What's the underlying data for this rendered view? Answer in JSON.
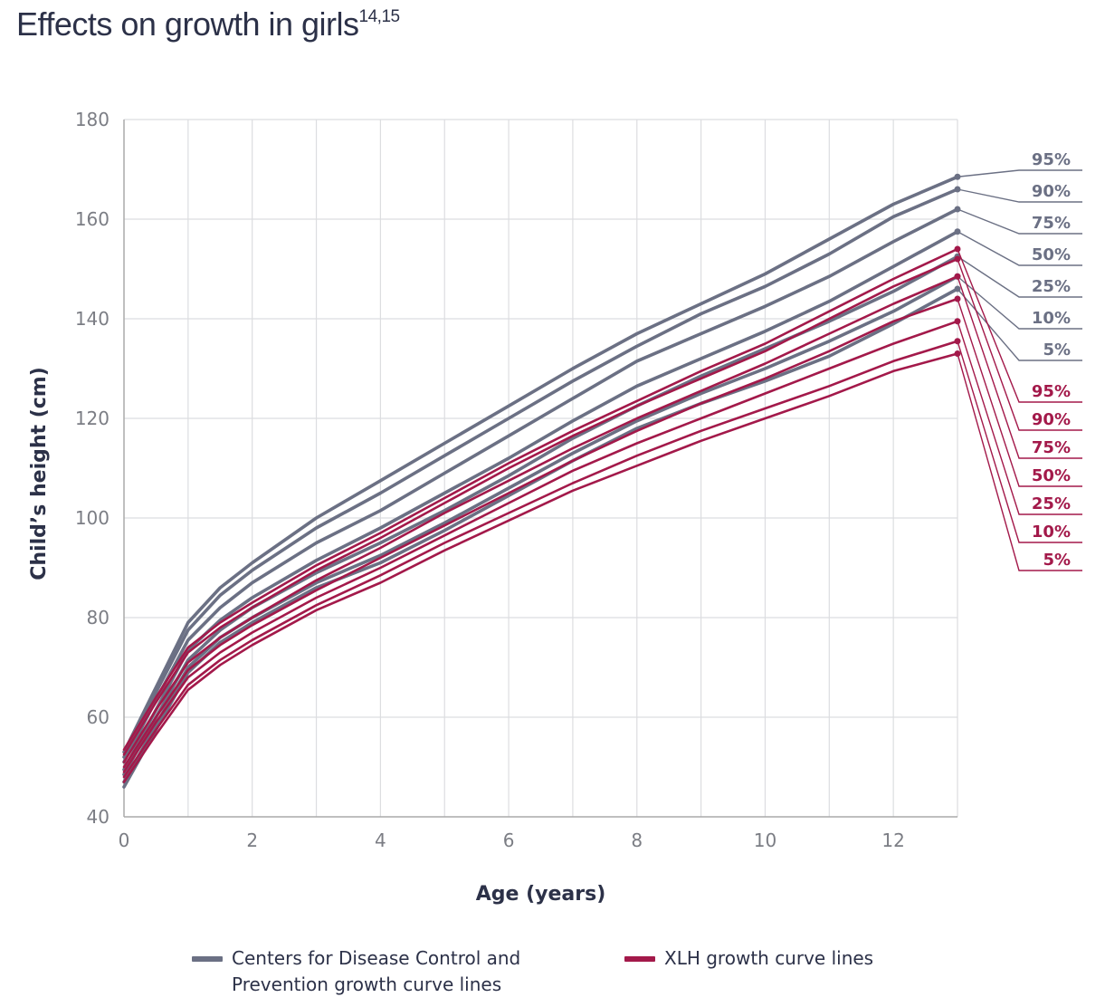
{
  "title": {
    "text": "Effects on growth in girls",
    "superscript": "14,15"
  },
  "colors": {
    "cdc": "#6b7084",
    "xlh": "#a3194a",
    "grid": "#dcdde0",
    "axis": "#aaaaaa"
  },
  "legend": {
    "cdc_label_line1": "Centers for Disease Control and",
    "cdc_label_line2": "Prevention growth curve lines",
    "xlh_label": "XLH growth curve lines"
  },
  "chart_data": {
    "type": "line",
    "xlabel": "Age (years)",
    "ylabel": "Child’s height (cm)",
    "xlim": [
      0,
      13
    ],
    "ylim": [
      40,
      180
    ],
    "xticks": [
      0,
      2,
      4,
      6,
      8,
      10,
      12
    ],
    "yticks": [
      40,
      60,
      80,
      100,
      120,
      140,
      160,
      180
    ],
    "grid": true,
    "x": [
      0,
      0.5,
      1,
      1.5,
      2,
      3,
      4,
      5,
      6,
      7,
      8,
      9,
      10,
      11,
      12,
      13
    ],
    "series": [
      {
        "group": "cdc",
        "name": "95%",
        "values": [
          53,
          66,
          79,
          86,
          91,
          100,
          107.5,
          115,
          122.5,
          130,
          137,
          143,
          149,
          156,
          163,
          168.5
        ]
      },
      {
        "group": "cdc",
        "name": "90%",
        "values": [
          52,
          65,
          77.5,
          84.5,
          89.5,
          98,
          105,
          112.5,
          120,
          127.5,
          134.5,
          141,
          146.5,
          153,
          160.5,
          166
        ]
      },
      {
        "group": "cdc",
        "name": "75%",
        "values": [
          51,
          63.5,
          75.5,
          82,
          87,
          95,
          101.5,
          109,
          116.5,
          124,
          131.5,
          137,
          142.5,
          148.5,
          155.5,
          162
        ]
      },
      {
        "group": "cdc",
        "name": "50%",
        "values": [
          49.5,
          61.5,
          73.5,
          79.5,
          84,
          91.5,
          98,
          105,
          112,
          119.5,
          126.5,
          132,
          137.5,
          143.5,
          150.5,
          157.5
        ]
      },
      {
        "group": "cdc",
        "name": "25%",
        "values": [
          48.5,
          60,
          71.5,
          77.5,
          82,
          89,
          95,
          101.5,
          108.5,
          116,
          122.5,
          128.5,
          134,
          139.5,
          145.5,
          152.5
        ]
      },
      {
        "group": "cdc",
        "name": "10%",
        "values": [
          47,
          58.5,
          70,
          76,
          80,
          87,
          92.5,
          99,
          106,
          113,
          119.5,
          125,
          130,
          135.5,
          141.5,
          148.5
        ]
      },
      {
        "group": "cdc",
        "name": "5%",
        "values": [
          46,
          57.5,
          69,
          75,
          79,
          86,
          91,
          97.5,
          104.5,
          111.5,
          118,
          123,
          127.5,
          132.5,
          139,
          146
        ]
      },
      {
        "group": "xlh",
        "name": "95%",
        "values": [
          53.5,
          64,
          74,
          79,
          83,
          90.5,
          97,
          104,
          111,
          117.5,
          123.5,
          129.5,
          135,
          141.5,
          148,
          154
        ]
      },
      {
        "group": "xlh",
        "name": "90%",
        "values": [
          52.5,
          63,
          73,
          78,
          82,
          89.5,
          96,
          103,
          110,
          116.5,
          122.5,
          128,
          133.5,
          140,
          146.5,
          152
        ]
      },
      {
        "group": "xlh",
        "name": "75%",
        "values": [
          51,
          61.5,
          71,
          76,
          80,
          87.5,
          94,
          101,
          107.5,
          114,
          120,
          125.5,
          131,
          137,
          143,
          148.5
        ]
      },
      {
        "group": "xlh",
        "name": "50%",
        "values": [
          50,
          60,
          69.5,
          74.5,
          78.5,
          85.5,
          92,
          98.5,
          105,
          111.5,
          117.5,
          123,
          128,
          133.5,
          139.5,
          144
        ]
      },
      {
        "group": "xlh",
        "name": "25%",
        "values": [
          49,
          59,
          68,
          73,
          77,
          84,
          90,
          96.5,
          103,
          109.5,
          115,
          120,
          125,
          130,
          135,
          139.5
        ]
      },
      {
        "group": "xlh",
        "name": "10%",
        "values": [
          48,
          57.5,
          66.5,
          71.5,
          75.5,
          82.5,
          88.5,
          95,
          101,
          107,
          112.5,
          117.5,
          122,
          126.5,
          131.5,
          135.5
        ]
      },
      {
        "group": "xlh",
        "name": "5%",
        "values": [
          47,
          56.5,
          65.5,
          70.5,
          74.5,
          81.5,
          87,
          93.5,
          99.5,
          105.5,
          110.5,
          115.5,
          120,
          124.5,
          129.5,
          133
        ]
      }
    ]
  }
}
